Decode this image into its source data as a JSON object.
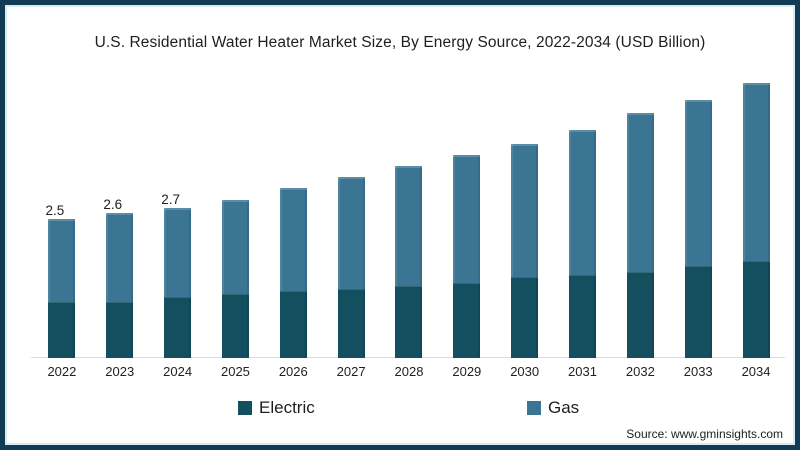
{
  "title": "U.S. Residential Water Heater Market Size, By Energy Source, 2022-2034 (USD Billion)",
  "source": "Source: www.gminsights.com",
  "colors": {
    "electric": "#134f5e",
    "gas": "#3a7593",
    "frame_border": "#123c56",
    "frame_inner_line": "#d8ecf6",
    "axis_line": "#dcdcdc",
    "text": "#1f1f1f"
  },
  "legend": {
    "items": [
      {
        "label": "Electric",
        "color": "#134f5e"
      },
      {
        "label": "Gas",
        "color": "#3a7593"
      }
    ]
  },
  "chart_data": {
    "type": "bar",
    "stacked": true,
    "title": "U.S. Residential Water Heater Market Size, By Energy Source, 2022-2034 (USD Billion)",
    "xlabel": "",
    "ylabel": "",
    "unit": "USD Billion",
    "categories": [
      "2022",
      "2023",
      "2024",
      "2025",
      "2026",
      "2027",
      "2028",
      "2029",
      "2030",
      "2031",
      "2032",
      "2033",
      "2034"
    ],
    "series": [
      {
        "name": "Electric",
        "color": "#134f5e",
        "values": [
          1.0,
          1.0,
          1.1,
          1.15,
          1.2,
          1.25,
          1.3,
          1.35,
          1.45,
          1.5,
          1.55,
          1.65,
          1.75
        ]
      },
      {
        "name": "Gas",
        "color": "#3a7593",
        "values": [
          1.5,
          1.6,
          1.6,
          1.7,
          1.85,
          2.0,
          2.15,
          2.3,
          2.4,
          2.6,
          2.85,
          3.0,
          3.2
        ]
      }
    ],
    "totals": [
      2.5,
      2.6,
      2.7,
      2.85,
      3.05,
      3.25,
      3.45,
      3.65,
      3.85,
      4.1,
      4.4,
      4.65,
      4.95
    ],
    "data_labels": [
      "2.5",
      "2.6",
      "2.7",
      "",
      "",
      "",
      "",
      "",
      "",
      "",
      "",
      "",
      ""
    ],
    "legend_position": "bottom",
    "grid": false,
    "ylim": [
      0,
      5.5
    ]
  }
}
